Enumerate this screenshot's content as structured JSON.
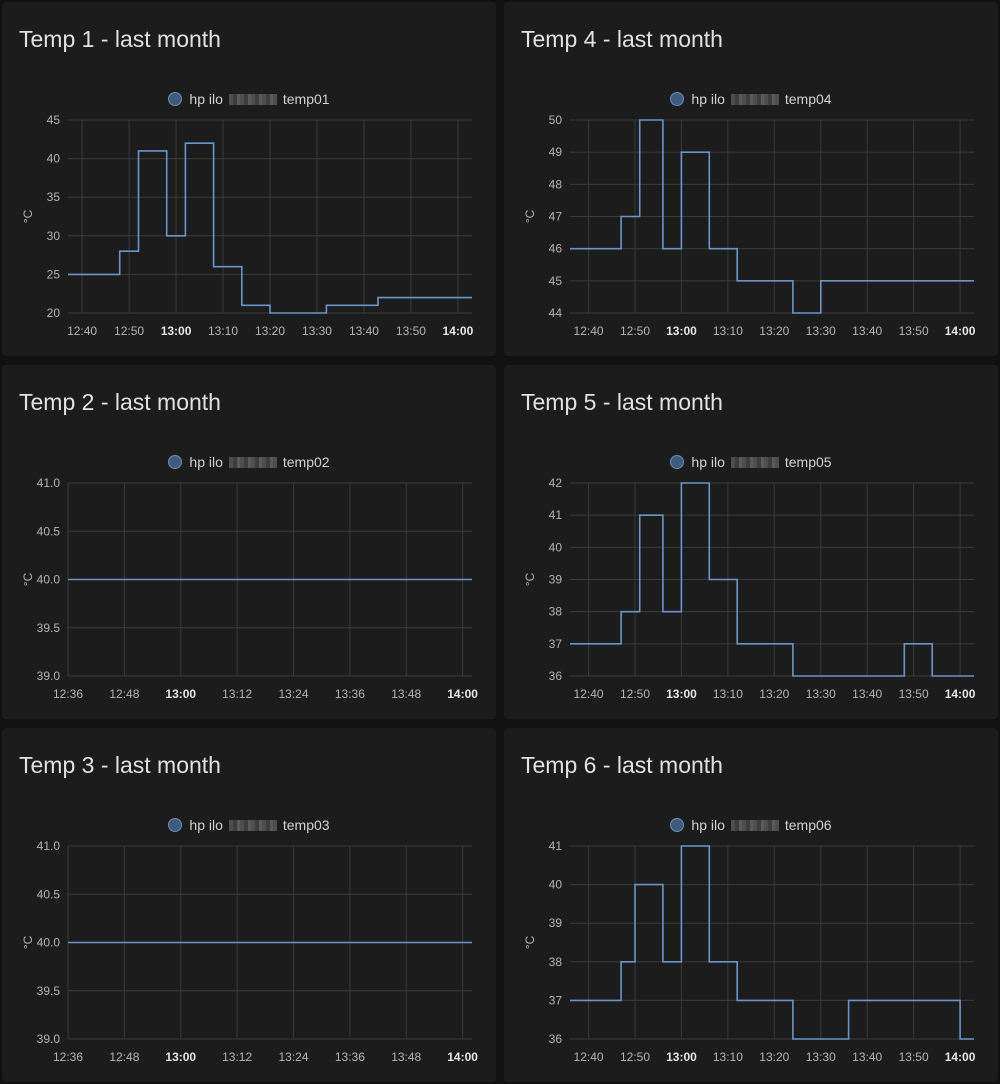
{
  "colors": {
    "background": "#111111",
    "card": "#1c1c1c",
    "grid": "#3a3a3a",
    "series_line": "#6a95c9",
    "text": "#e1e1e1"
  },
  "cards": [
    {
      "title": "Temp 1 - last month",
      "legend": {
        "prefix": "hp ilo",
        "suffix": "temp01",
        "icon": "legend-circle-icon"
      },
      "chart_data": {
        "type": "line",
        "step": true,
        "ylabel": "°C",
        "ylim": [
          20,
          45
        ],
        "yticks": [
          "45",
          "40",
          "35",
          "30",
          "25",
          "20"
        ],
        "ytick_values": [
          45,
          40,
          35,
          30,
          25,
          20
        ],
        "xlim": [
          "12:37",
          "14:03"
        ],
        "xticks": [
          "12:40",
          "12:50",
          "13:00",
          "13:10",
          "13:20",
          "13:30",
          "13:40",
          "13:50",
          "14:00"
        ],
        "xtick_bold": [
          "13:00",
          "14:00"
        ],
        "x": [
          "12:37",
          "12:48",
          "12:52",
          "12:58",
          "13:02",
          "13:08",
          "13:14",
          "13:20",
          "13:32",
          "13:43",
          "14:03"
        ],
        "values": [
          25,
          28,
          41,
          30,
          42,
          26,
          21,
          20,
          21,
          22,
          22
        ]
      }
    },
    {
      "title": "Temp 4 - last month",
      "legend": {
        "prefix": "hp ilo",
        "suffix": "temp04",
        "icon": "legend-circle-icon"
      },
      "chart_data": {
        "type": "line",
        "step": true,
        "ylabel": "°C",
        "ylim": [
          44,
          50
        ],
        "yticks": [
          "50",
          "49",
          "48",
          "47",
          "46",
          "45",
          "44"
        ],
        "ytick_values": [
          50,
          49,
          48,
          47,
          46,
          45,
          44
        ],
        "xlim": [
          "12:36",
          "14:03"
        ],
        "xticks": [
          "12:40",
          "12:50",
          "13:00",
          "13:10",
          "13:20",
          "13:30",
          "13:40",
          "13:50",
          "14:00"
        ],
        "xtick_bold": [
          "13:00",
          "14:00"
        ],
        "x": [
          "12:36",
          "12:47",
          "12:51",
          "12:56",
          "13:00",
          "13:06",
          "13:12",
          "13:24",
          "13:30",
          "14:03"
        ],
        "values": [
          46,
          47,
          50,
          46,
          49,
          46,
          45,
          44,
          45,
          45
        ]
      }
    },
    {
      "title": "Temp 2 - last month",
      "legend": {
        "prefix": "hp ilo",
        "suffix": "temp02",
        "icon": "legend-circle-icon"
      },
      "chart_data": {
        "type": "line",
        "step": true,
        "ylabel": "°C",
        "ylim": [
          39.0,
          41.0
        ],
        "yticks": [
          "41.0",
          "40.5",
          "40.0",
          "39.5",
          "39.0"
        ],
        "ytick_values": [
          41.0,
          40.5,
          40.0,
          39.5,
          39.0
        ],
        "xlim": [
          "12:36",
          "14:02"
        ],
        "xticks": [
          "12:36",
          "12:48",
          "13:00",
          "13:12",
          "13:24",
          "13:36",
          "13:48",
          "14:00"
        ],
        "xtick_bold": [
          "13:00",
          "14:00"
        ],
        "x": [
          "12:36",
          "14:02"
        ],
        "values": [
          40.0,
          40.0
        ]
      }
    },
    {
      "title": "Temp 5 - last month",
      "legend": {
        "prefix": "hp ilo",
        "suffix": "temp05",
        "icon": "legend-circle-icon"
      },
      "chart_data": {
        "type": "line",
        "step": true,
        "ylabel": "°C",
        "ylim": [
          36,
          42
        ],
        "yticks": [
          "42",
          "41",
          "40",
          "39",
          "38",
          "37",
          "36"
        ],
        "ytick_values": [
          42,
          41,
          40,
          39,
          38,
          37,
          36
        ],
        "xlim": [
          "12:36",
          "14:03"
        ],
        "xticks": [
          "12:40",
          "12:50",
          "13:00",
          "13:10",
          "13:20",
          "13:30",
          "13:40",
          "13:50",
          "14:00"
        ],
        "xtick_bold": [
          "13:00",
          "14:00"
        ],
        "x": [
          "12:36",
          "12:47",
          "12:51",
          "12:56",
          "13:00",
          "13:06",
          "13:12",
          "13:24",
          "13:48",
          "13:54",
          "14:03"
        ],
        "values": [
          37,
          38,
          41,
          38,
          42,
          39,
          37,
          36,
          37,
          36,
          36
        ]
      }
    },
    {
      "title": "Temp 3 - last month",
      "legend": {
        "prefix": "hp ilo",
        "suffix": "temp03",
        "icon": "legend-circle-icon"
      },
      "chart_data": {
        "type": "line",
        "step": true,
        "ylabel": "°C",
        "ylim": [
          39.0,
          41.0
        ],
        "yticks": [
          "41.0",
          "40.5",
          "40.0",
          "39.5",
          "39.0"
        ],
        "ytick_values": [
          41.0,
          40.5,
          40.0,
          39.5,
          39.0
        ],
        "xlim": [
          "12:36",
          "14:02"
        ],
        "xticks": [
          "12:36",
          "12:48",
          "13:00",
          "13:12",
          "13:24",
          "13:36",
          "13:48",
          "14:00"
        ],
        "xtick_bold": [
          "13:00",
          "14:00"
        ],
        "x": [
          "12:36",
          "14:02"
        ],
        "values": [
          40.0,
          40.0
        ]
      }
    },
    {
      "title": "Temp 6 - last month",
      "legend": {
        "prefix": "hp ilo",
        "suffix": "temp06",
        "icon": "legend-circle-icon"
      },
      "chart_data": {
        "type": "line",
        "step": true,
        "ylabel": "°C",
        "ylim": [
          36,
          41
        ],
        "yticks": [
          "41",
          "40",
          "39",
          "38",
          "37",
          "36"
        ],
        "ytick_values": [
          41,
          40,
          39,
          38,
          37,
          36
        ],
        "xlim": [
          "12:36",
          "14:03"
        ],
        "xticks": [
          "12:40",
          "12:50",
          "13:00",
          "13:10",
          "13:20",
          "13:30",
          "13:40",
          "13:50",
          "14:00"
        ],
        "xtick_bold": [
          "13:00",
          "14:00"
        ],
        "x": [
          "12:36",
          "12:47",
          "12:50",
          "12:56",
          "13:00",
          "13:06",
          "13:12",
          "13:24",
          "13:36",
          "14:00",
          "14:03"
        ],
        "values": [
          37,
          38,
          40,
          38,
          41,
          38,
          37,
          36,
          37,
          36,
          36
        ]
      }
    }
  ]
}
